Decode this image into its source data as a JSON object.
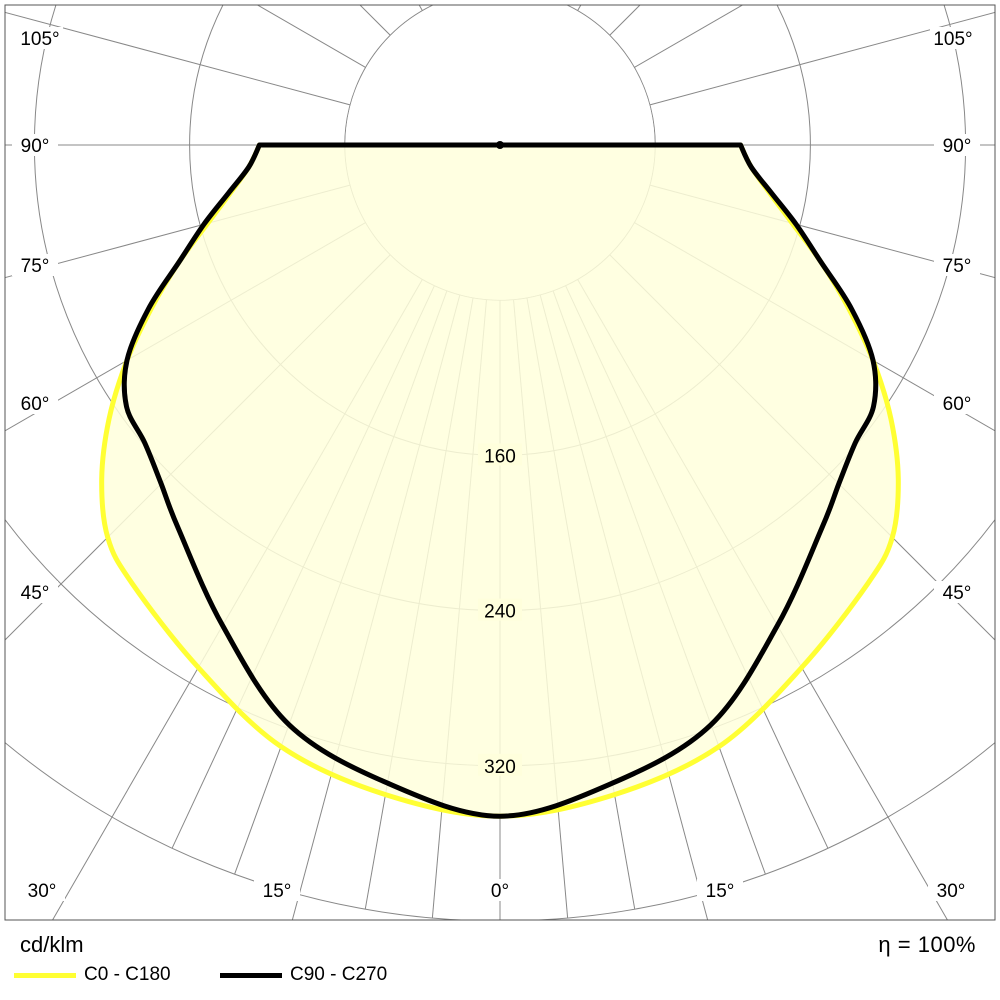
{
  "chart_data": {
    "type": "polar",
    "unit_label": "cd/klm",
    "efficiency_label": "η = 100%",
    "angle_labels_left": [
      "105°",
      "90°",
      "75°",
      "60°",
      "45°",
      "30°",
      "15°"
    ],
    "angle_labels_right": [
      "105°",
      "90°",
      "75°",
      "60°",
      "45°",
      "30°",
      "15°"
    ],
    "angle_label_bottom": "0°",
    "radial_ticks": [
      80,
      160,
      240,
      320,
      400
    ],
    "radial_tick_labels": [
      "160",
      "240",
      "320"
    ],
    "r_max": 400,
    "series": [
      {
        "name": "C0 - C180",
        "color": "#ffff33",
        "angles": [
          0,
          10,
          20,
          30,
          40,
          45,
          50,
          55,
          60,
          65,
          70,
          75,
          80,
          85,
          90
        ],
        "values": [
          346,
          340,
          330,
          311,
          295,
          286,
          268,
          246,
          222,
          198,
          176,
          156,
          141,
          130,
          124
        ]
      },
      {
        "name": "C90 - C270",
        "color": "#000000",
        "angles": [
          0,
          10,
          20,
          30,
          40,
          45,
          50,
          55,
          60,
          65,
          70,
          75,
          80,
          85,
          90
        ],
        "values": [
          346,
          334,
          318,
          286,
          258,
          247,
          239,
          235,
          222,
          200,
          176,
          158,
          142,
          130,
          124
        ]
      }
    ],
    "fill_color": "#ffffdc"
  }
}
